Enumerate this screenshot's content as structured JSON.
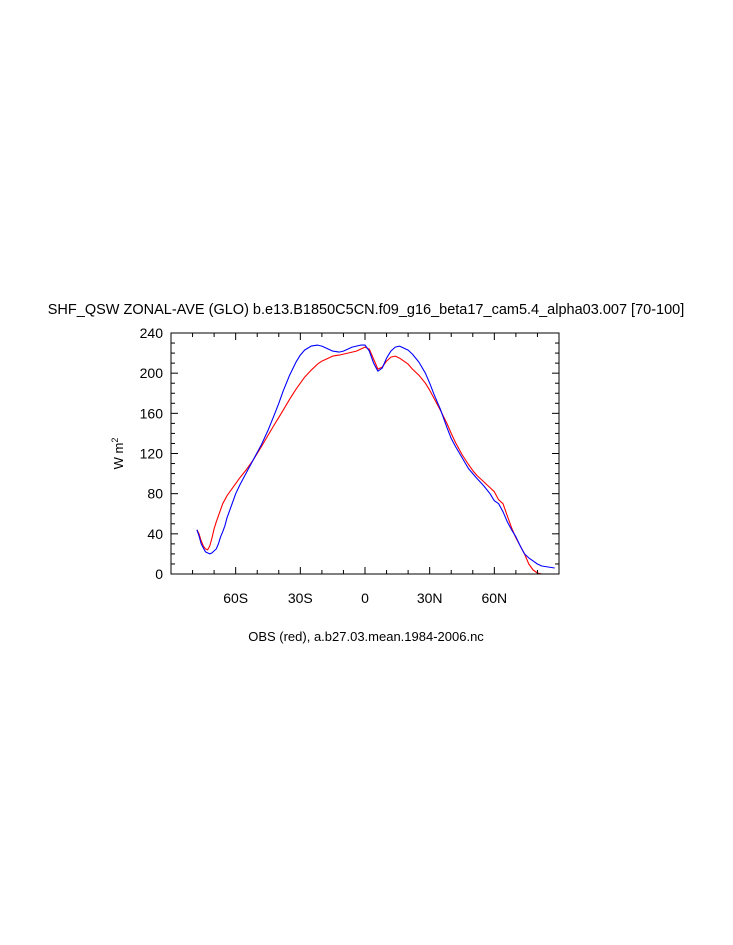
{
  "chart_data": {
    "type": "line",
    "title": "SHF_QSW ZONAL-AVE (GLO) b.e13.B1850C5CN.f09_g16_beta17_cam5.4_alpha03.007 [70-100]",
    "ylabel": "W m",
    "ylabel_superscript": "2",
    "footer": "OBS (red), a.b27.03.mean.1984-2006.nc",
    "xlim": [
      -90,
      90
    ],
    "ylim": [
      0,
      240
    ],
    "x_ticks": [
      -60,
      -30,
      0,
      30,
      60
    ],
    "x_tick_labels": [
      "60S",
      "30S",
      "0",
      "30N",
      "60N"
    ],
    "y_ticks": [
      0,
      40,
      80,
      120,
      160,
      200,
      240
    ],
    "y_tick_labels": [
      "0",
      "40",
      "80",
      "120",
      "160",
      "200",
      "240"
    ],
    "grid": false,
    "series": [
      {
        "color": "#ff0000",
        "x": [
          -78,
          -77,
          -76,
          -75,
          -74,
          -73,
          -72,
          -71,
          -70,
          -69,
          -68,
          -67,
          -66,
          -65,
          -64,
          -62,
          -60,
          -58,
          -55,
          -52,
          -50,
          -48,
          -45,
          -42,
          -40,
          -38,
          -35,
          -32,
          -30,
          -28,
          -25,
          -22,
          -20,
          -17,
          -15,
          -12,
          -10,
          -8,
          -6,
          -4,
          -2,
          0,
          2,
          4,
          6,
          8,
          10,
          12,
          14,
          16,
          18,
          20,
          22,
          25,
          28,
          30,
          32,
          35,
          38,
          40,
          42,
          45,
          48,
          50,
          52,
          55,
          58,
          60,
          62,
          64,
          66,
          68,
          70,
          72,
          74,
          76,
          78,
          80,
          82,
          85,
          88
        ],
        "y": [
          44,
          40,
          33,
          28,
          25,
          24,
          28,
          36,
          45,
          52,
          58,
          64,
          70,
          74,
          78,
          84,
          90,
          96,
          104,
          113,
          120,
          127,
          138,
          149,
          156,
          163,
          174,
          184,
          190,
          196,
          203,
          209,
          212,
          215,
          217,
          218,
          219,
          220,
          221,
          222,
          224,
          226,
          224,
          214,
          204,
          206,
          212,
          216,
          217,
          215,
          212,
          209,
          204,
          198,
          190,
          183,
          175,
          163,
          150,
          140,
          131,
          119,
          109,
          103,
          98,
          92,
          86,
          82,
          74,
          70,
          58,
          46,
          36,
          28,
          20,
          10,
          4,
          1,
          0,
          0,
          0
        ]
      },
      {
        "color": "#0000ff",
        "x": [
          -78,
          -77,
          -76,
          -75,
          -74,
          -73,
          -72,
          -71,
          -70,
          -69,
          -68,
          -67,
          -66,
          -65,
          -64,
          -62,
          -60,
          -58,
          -55,
          -52,
          -50,
          -48,
          -45,
          -42,
          -40,
          -38,
          -35,
          -32,
          -30,
          -28,
          -25,
          -22,
          -20,
          -17,
          -15,
          -12,
          -10,
          -8,
          -6,
          -4,
          -2,
          0,
          2,
          4,
          6,
          8,
          10,
          12,
          14,
          16,
          18,
          20,
          22,
          25,
          28,
          30,
          32,
          35,
          38,
          40,
          42,
          45,
          48,
          50,
          52,
          55,
          58,
          60,
          62,
          64,
          66,
          68,
          70,
          72,
          74,
          76,
          78,
          80,
          82,
          85,
          88
        ],
        "y": [
          44,
          38,
          30,
          26,
          22,
          21,
          20,
          21,
          23,
          25,
          30,
          37,
          42,
          48,
          56,
          68,
          80,
          89,
          101,
          113,
          121,
          129,
          143,
          159,
          170,
          182,
          198,
          211,
          218,
          223,
          227,
          228,
          227,
          224,
          222,
          221,
          222,
          224,
          226,
          227,
          228,
          228,
          222,
          210,
          202,
          205,
          215,
          222,
          226,
          227,
          225,
          223,
          219,
          211,
          200,
          190,
          179,
          164,
          146,
          135,
          127,
          116,
          105,
          100,
          95,
          88,
          80,
          73,
          70,
          62,
          52,
          44,
          37,
          28,
          20,
          16,
          13,
          10,
          8,
          7,
          6
        ]
      }
    ]
  }
}
